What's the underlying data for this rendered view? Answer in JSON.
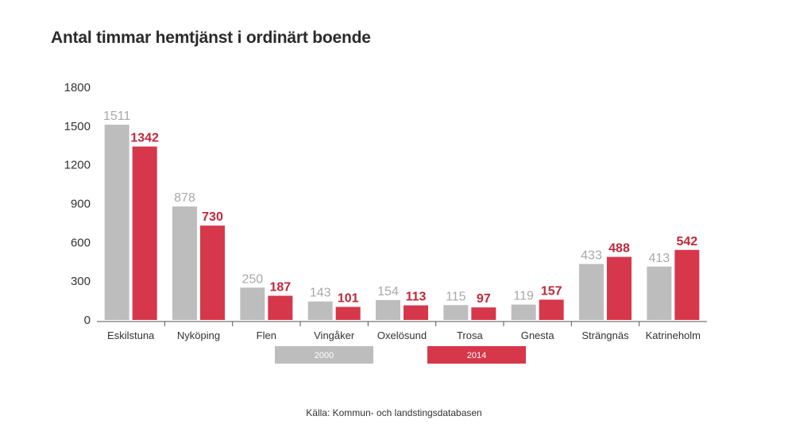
{
  "chart_data": {
    "type": "bar",
    "title": "Antal timmar hemtjänst i ordinärt boende",
    "categories": [
      "Eskilstuna",
      "Nyköping",
      "Flen",
      "Vingåker",
      "Oxelösund",
      "Trosa",
      "Gnesta",
      "Strängnäs",
      "Katrineholm"
    ],
    "series": [
      {
        "name": "2000",
        "color": "#bdbdbd",
        "values": [
          1511,
          878,
          250,
          143,
          154,
          115,
          119,
          433,
          413
        ]
      },
      {
        "name": "2014",
        "color": "#d6374a",
        "values": [
          1342,
          730,
          187,
          101,
          113,
          97,
          157,
          488,
          542
        ]
      }
    ],
    "yticks": [
      0,
      300,
      600,
      900,
      1200,
      1500,
      1800
    ],
    "ylim": [
      0,
      1800
    ],
    "legend_position": "bottom",
    "source": "Källa:  Kommun- och landstingsdatabasen"
  }
}
